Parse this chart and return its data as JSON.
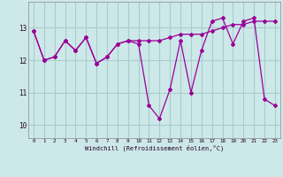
{
  "x": [
    0,
    1,
    2,
    3,
    4,
    5,
    6,
    7,
    8,
    9,
    10,
    11,
    12,
    13,
    14,
    15,
    16,
    17,
    18,
    19,
    20,
    21,
    22,
    23
  ],
  "line1": [
    12.9,
    12.0,
    12.1,
    12.6,
    12.3,
    12.7,
    11.9,
    12.1,
    12.5,
    12.6,
    12.5,
    10.6,
    10.2,
    11.1,
    12.6,
    11.0,
    12.3,
    13.2,
    13.3,
    12.5,
    13.2,
    13.3,
    10.8,
    10.6
  ],
  "line2": [
    12.9,
    12.0,
    12.1,
    12.6,
    12.3,
    12.7,
    11.9,
    12.1,
    12.5,
    12.6,
    12.6,
    12.6,
    12.6,
    12.7,
    12.8,
    12.8,
    12.8,
    12.9,
    13.0,
    13.1,
    13.1,
    13.2,
    13.2,
    13.2
  ],
  "color": "#990099",
  "bg_color": "#cce8e8",
  "plot_bg": "#cce8e8",
  "grid_color": "#aacccc",
  "xlabel": "Windchill (Refroidissement éolien,°C)",
  "yticks": [
    10,
    11,
    12,
    13
  ],
  "xticks": [
    0,
    1,
    2,
    3,
    4,
    5,
    6,
    7,
    8,
    9,
    10,
    11,
    12,
    13,
    14,
    15,
    16,
    17,
    18,
    19,
    20,
    21,
    22,
    23
  ],
  "ylim": [
    9.6,
    13.8
  ],
  "xlim": [
    -0.5,
    23.5
  ]
}
